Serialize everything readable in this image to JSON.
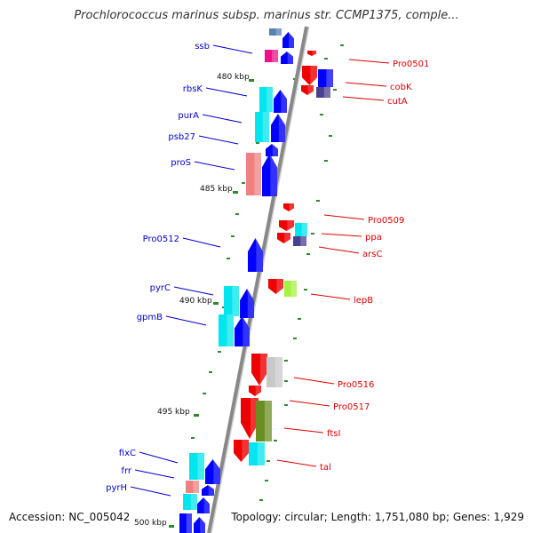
{
  "header": {
    "title": "Prochlorococcus marinus subsp. marinus str. CCMP1375, comple..."
  },
  "footer": {
    "accession": "Accession: NC_005042",
    "stats": "Topology: circular; Length: 1,751,080 bp; Genes: 1,929"
  },
  "scale_marks": [
    {
      "label": "480 kbp"
    },
    {
      "label": "485 kbp"
    },
    {
      "label": "490 kbp"
    },
    {
      "label": "495 kbp"
    },
    {
      "label": "500 kbp"
    }
  ],
  "colors": {
    "forward_label": "#0000cc",
    "reverse_label": "#dd0000",
    "backbone": "#888888",
    "tick": "#2e8b2e",
    "blue": "#0000ff",
    "cyan": "#00e5ee",
    "red": "#ee0000",
    "navy": "#4b3f8f",
    "salmon": "#f08080",
    "magenta": "#ee1289",
    "lime": "#a6f046",
    "olive": "#6b8e23",
    "grey": "#c8c8c8",
    "steel": "#5a7fb5"
  },
  "forward_labels": [
    "ssb",
    "rbsK",
    "purA",
    "psb27",
    "proS",
    "Pro0512",
    "pyrC",
    "gpmB",
    "fixC",
    "frr",
    "pyrH"
  ],
  "reverse_labels": [
    "Pro0501",
    "cobK",
    "cutA",
    "Pro0509",
    "ppa",
    "arsC",
    "lepB",
    "Pro0516",
    "Pro0517",
    "ftsI",
    "tal"
  ]
}
